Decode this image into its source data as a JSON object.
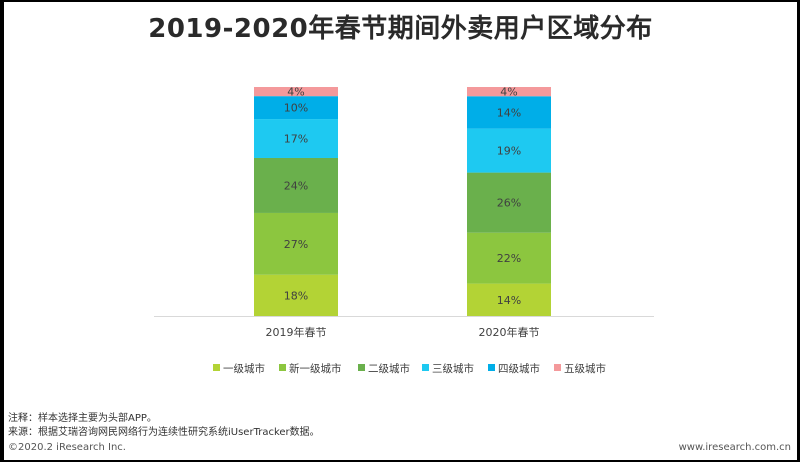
{
  "title": "2019-2020年春节期间外卖用户区域分布",
  "notes": {
    "note": "注释：样本选择主要为头部APP。",
    "source": "来源：根据艾瑞咨询网民网络行为连续性研究系统iUserTracker数据。"
  },
  "footer": {
    "left": "©2020.2  iResearch Inc.",
    "right": "www.iresearch.com.cn"
  },
  "chart_data": {
    "type": "bar",
    "stacked": true,
    "percent_stacked": true,
    "categories": [
      "2019年春节",
      "2020年春节"
    ],
    "series": [
      {
        "name": "一级城市",
        "values": [
          18,
          14
        ],
        "color": "#b3d335"
      },
      {
        "name": "新一级城市",
        "values": [
          27,
          22
        ],
        "color": "#8cc63f"
      },
      {
        "name": "二级城市",
        "values": [
          24,
          26
        ],
        "color": "#6ab04c"
      },
      {
        "name": "三级城市",
        "values": [
          17,
          19
        ],
        "color": "#1ec9f1"
      },
      {
        "name": "四级城市",
        "values": [
          10,
          14
        ],
        "color": "#00aee8"
      },
      {
        "name": "五级城市",
        "values": [
          4,
          4
        ],
        "color": "#f4999b"
      }
    ],
    "data_label_suffix": "%",
    "legend_position": "bottom",
    "grid": false
  }
}
